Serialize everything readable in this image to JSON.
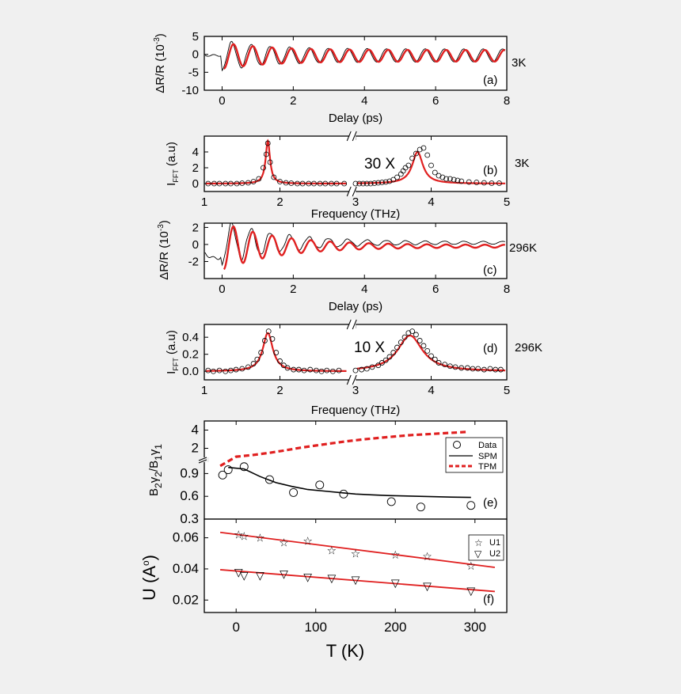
{
  "chart_data": [
    {
      "panel": "(a)",
      "type": "line",
      "side_label": "3K",
      "xlabel": "Delay (ps)",
      "ylabel": "ΔR/R (10-3)",
      "xlim": [
        -0.5,
        8
      ],
      "ylim": [
        -10,
        5
      ],
      "xticks": [
        0,
        2,
        4,
        6,
        8
      ],
      "yticks": [
        -10,
        -5,
        0,
        5
      ],
      "series": [
        {
          "role": "data",
          "color": "#000000",
          "osc": {
            "t0": 0.0,
            "freq": 1.84,
            "amp0": 4.2,
            "amp_inf": 1.8,
            "decay": 1.2,
            "offset": -0.3,
            "phase": 3.14
          }
        },
        {
          "role": "fit",
          "color": "#e02020",
          "osc": {
            "t0": 0.05,
            "freq": 1.84,
            "amp0": 3.6,
            "amp_inf": 1.6,
            "decay": 1.3,
            "offset": -0.4,
            "phase": 3.14
          }
        }
      ]
    },
    {
      "panel": "(b)",
      "type": "line",
      "side_label": "3K",
      "annotation": "30 X",
      "xlabel": "Frequency (THz)",
      "ylabel": "IFFT (a.u)",
      "xlim": [
        1,
        5
      ],
      "ylim": [
        -1,
        6
      ],
      "xticks": [
        1,
        2,
        3,
        4,
        5
      ],
      "yticks": [
        0,
        2,
        4
      ],
      "peaks": [
        {
          "center": 1.84,
          "height": 5.4,
          "width": 0.035
        },
        {
          "center": 3.82,
          "height": 4.0,
          "width": 0.085
        }
      ],
      "data_points": {
        "x": [
          1.05,
          1.13,
          1.2,
          1.28,
          1.35,
          1.43,
          1.5,
          1.58,
          1.65,
          1.72,
          1.78,
          1.82,
          1.84,
          1.87,
          1.92,
          2.0,
          2.08,
          2.15,
          2.23,
          2.3,
          2.38,
          2.45,
          2.53,
          2.6,
          2.68,
          2.75,
          2.85,
          3.0,
          3.05,
          3.1,
          3.15,
          3.2,
          3.25,
          3.3,
          3.35,
          3.4,
          3.45,
          3.5,
          3.55,
          3.6,
          3.63,
          3.66,
          3.7,
          3.75,
          3.8,
          3.85,
          3.9,
          3.95,
          4.0,
          4.05,
          4.1,
          4.15,
          4.2,
          4.25,
          4.3,
          4.35,
          4.4,
          4.5,
          4.6,
          4.7,
          4.8,
          4.9
        ],
        "y": [
          0,
          0,
          0,
          0,
          0,
          0,
          0.05,
          0.1,
          0.25,
          0.6,
          2.0,
          3.7,
          5.1,
          2.7,
          0.8,
          0.25,
          0.1,
          0.05,
          0,
          0,
          0,
          0,
          0,
          0,
          0,
          0,
          0,
          0,
          0,
          0,
          0,
          0,
          0.05,
          0.1,
          0.15,
          0.2,
          0.3,
          0.5,
          0.8,
          1.2,
          1.6,
          2.0,
          2.3,
          3.2,
          3.8,
          4.3,
          4.5,
          3.6,
          2.3,
          1.4,
          1.0,
          0.8,
          0.6,
          0.6,
          0.5,
          0.4,
          0.3,
          0.2,
          0.15,
          0.1,
          0.05,
          0.05
        ]
      }
    },
    {
      "panel": "(c)",
      "type": "line",
      "side_label": "296K",
      "xlabel": "Delay (ps)",
      "ylabel": "ΔR/R (10-3)",
      "xlim": [
        -0.5,
        8
      ],
      "ylim": [
        -4,
        2.5
      ],
      "xticks": [
        0,
        2,
        4,
        6,
        8
      ],
      "yticks": [
        -2,
        0,
        2
      ],
      "series": [
        {
          "role": "data",
          "color": "#000000",
          "osc": {
            "t0": 0.0,
            "freq": 1.84,
            "amp0": 2.6,
            "amp_inf": 0.15,
            "decay": 1.6,
            "offset": 0.2,
            "phase": 3.14
          }
        },
        {
          "role": "fit",
          "color": "#e02020",
          "osc": {
            "t0": 0.05,
            "freq": 1.84,
            "amp0": 2.7,
            "amp_inf": 0.15,
            "decay": 1.6,
            "offset": -0.2,
            "phase": 3.14
          }
        }
      ]
    },
    {
      "panel": "(d)",
      "type": "line",
      "side_label": "296K",
      "annotation": "10 X",
      "xlabel": "Frequency (THz)",
      "ylabel": "IFFT (a.u)",
      "xlim": [
        1,
        5
      ],
      "ylim": [
        -0.1,
        0.55
      ],
      "xticks": [
        1,
        2,
        3,
        4,
        5
      ],
      "yticks": [
        0.0,
        0.2,
        0.4
      ],
      "peaks": [
        {
          "center": 1.84,
          "height": 0.45,
          "width": 0.08
        },
        {
          "center": 3.72,
          "height": 0.42,
          "width": 0.2
        }
      ],
      "data_points": {
        "x": [
          1.05,
          1.12,
          1.2,
          1.28,
          1.35,
          1.42,
          1.5,
          1.58,
          1.65,
          1.7,
          1.75,
          1.8,
          1.85,
          1.9,
          1.95,
          2.0,
          2.05,
          2.1,
          2.18,
          2.25,
          2.32,
          2.4,
          2.48,
          2.55,
          2.62,
          2.7,
          2.78,
          3.0,
          3.08,
          3.15,
          3.22,
          3.3,
          3.35,
          3.4,
          3.45,
          3.5,
          3.55,
          3.6,
          3.65,
          3.7,
          3.75,
          3.8,
          3.85,
          3.9,
          3.95,
          4.0,
          4.05,
          4.1,
          4.18,
          4.25,
          4.32,
          4.4,
          4.48,
          4.55,
          4.62,
          4.7,
          4.78,
          4.85,
          4.92
        ],
        "y": [
          0.01,
          0.0,
          0.01,
          0.0,
          0.01,
          0.02,
          0.03,
          0.05,
          0.09,
          0.14,
          0.22,
          0.36,
          0.47,
          0.38,
          0.22,
          0.12,
          0.07,
          0.04,
          0.02,
          0.02,
          0.01,
          0.02,
          0.01,
          0.0,
          0.01,
          0.0,
          0.01,
          0.01,
          0.02,
          0.03,
          0.05,
          0.07,
          0.1,
          0.13,
          0.17,
          0.22,
          0.28,
          0.34,
          0.4,
          0.45,
          0.47,
          0.43,
          0.36,
          0.3,
          0.24,
          0.18,
          0.14,
          0.1,
          0.08,
          0.06,
          0.05,
          0.04,
          0.04,
          0.03,
          0.03,
          0.02,
          0.03,
          0.02,
          0.02
        ]
      }
    },
    {
      "panel": "(e)",
      "type": "line",
      "ylabel": "B2γ2/B1γ1",
      "xlim": [
        -40,
        340
      ],
      "ylim_upper": [
        1.0,
        5.0
      ],
      "ylim_lower": [
        0.3,
        1.05
      ],
      "yticks_upper": [
        2,
        4
      ],
      "yticks_lower": [
        0.3,
        0.6,
        0.9
      ],
      "legend_position": "top-right",
      "series": [
        {
          "name": "Data",
          "style": "circle",
          "x": [
            -17,
            -10,
            10,
            42,
            72,
            105,
            135,
            195,
            232,
            295
          ],
          "y": [
            0.88,
            0.95,
            0.99,
            0.82,
            0.65,
            0.75,
            0.63,
            0.53,
            0.46,
            0.48
          ]
        },
        {
          "name": "SPM",
          "style": "line",
          "color": "#000000",
          "x": [
            -10,
            10,
            30,
            50,
            70,
            90,
            110,
            130,
            150,
            170,
            190,
            210,
            230,
            250,
            270,
            295
          ],
          "y": [
            0.98,
            0.96,
            0.86,
            0.78,
            0.73,
            0.69,
            0.67,
            0.65,
            0.63,
            0.62,
            0.61,
            0.605,
            0.6,
            0.595,
            0.59,
            0.585
          ]
        },
        {
          "name": "TPM",
          "style": "dashed",
          "color": "#e02020",
          "x": [
            -20,
            0,
            20,
            40,
            60,
            80,
            100,
            120,
            140,
            160,
            180,
            200,
            220,
            240,
            260,
            280,
            290
          ],
          "y": [
            1.0,
            1.08,
            1.25,
            1.48,
            1.75,
            2.05,
            2.3,
            2.55,
            2.78,
            2.98,
            3.15,
            3.3,
            3.45,
            3.55,
            3.65,
            3.75,
            3.8
          ]
        }
      ]
    },
    {
      "panel": "(f)",
      "type": "scatter",
      "xlabel": "T (K)",
      "ylabel": "U (A°)",
      "xlim": [
        -40,
        340
      ],
      "ylim": [
        0.012,
        0.072
      ],
      "xticks": [
        0,
        100,
        200,
        300
      ],
      "yticks": [
        0.02,
        0.04,
        0.06
      ],
      "legend_position": "top-right",
      "series": [
        {
          "name": "U1",
          "marker": "star",
          "x": [
            3,
            10,
            30,
            60,
            90,
            120,
            150,
            200,
            240,
            295
          ],
          "y": [
            0.062,
            0.061,
            0.06,
            0.057,
            0.058,
            0.052,
            0.05,
            0.049,
            0.048,
            0.042
          ]
        },
        {
          "name": "U2",
          "marker": "triangle-down",
          "x": [
            3,
            10,
            30,
            60,
            90,
            120,
            150,
            200,
            240,
            295
          ],
          "y": [
            0.038,
            0.036,
            0.036,
            0.037,
            0.035,
            0.034,
            0.033,
            0.031,
            0.029,
            0.026
          ]
        }
      ],
      "fits": [
        {
          "color": "#e02020",
          "x": [
            -20,
            325
          ],
          "y": [
            0.0635,
            0.041
          ]
        },
        {
          "color": "#e02020",
          "x": [
            -20,
            325
          ],
          "y": [
            0.0395,
            0.0255
          ]
        }
      ]
    }
  ],
  "texts": {
    "a_tag": "(a)",
    "b_tag": "(b)",
    "c_tag": "(c)",
    "d_tag": "(d)",
    "e_tag": "(e)",
    "f_tag": "(f)",
    "side_3k": "3K",
    "side_296k": "296K",
    "mult_30": "30 X",
    "mult_10": "10 X",
    "delay": "Delay (ps)",
    "freq": "Frequency (THz)",
    "temp": "T (K)",
    "leg_data": "Data",
    "leg_spm": "SPM",
    "leg_tpm": "TPM",
    "leg_u1": "U1",
    "leg_u2": "U2"
  }
}
